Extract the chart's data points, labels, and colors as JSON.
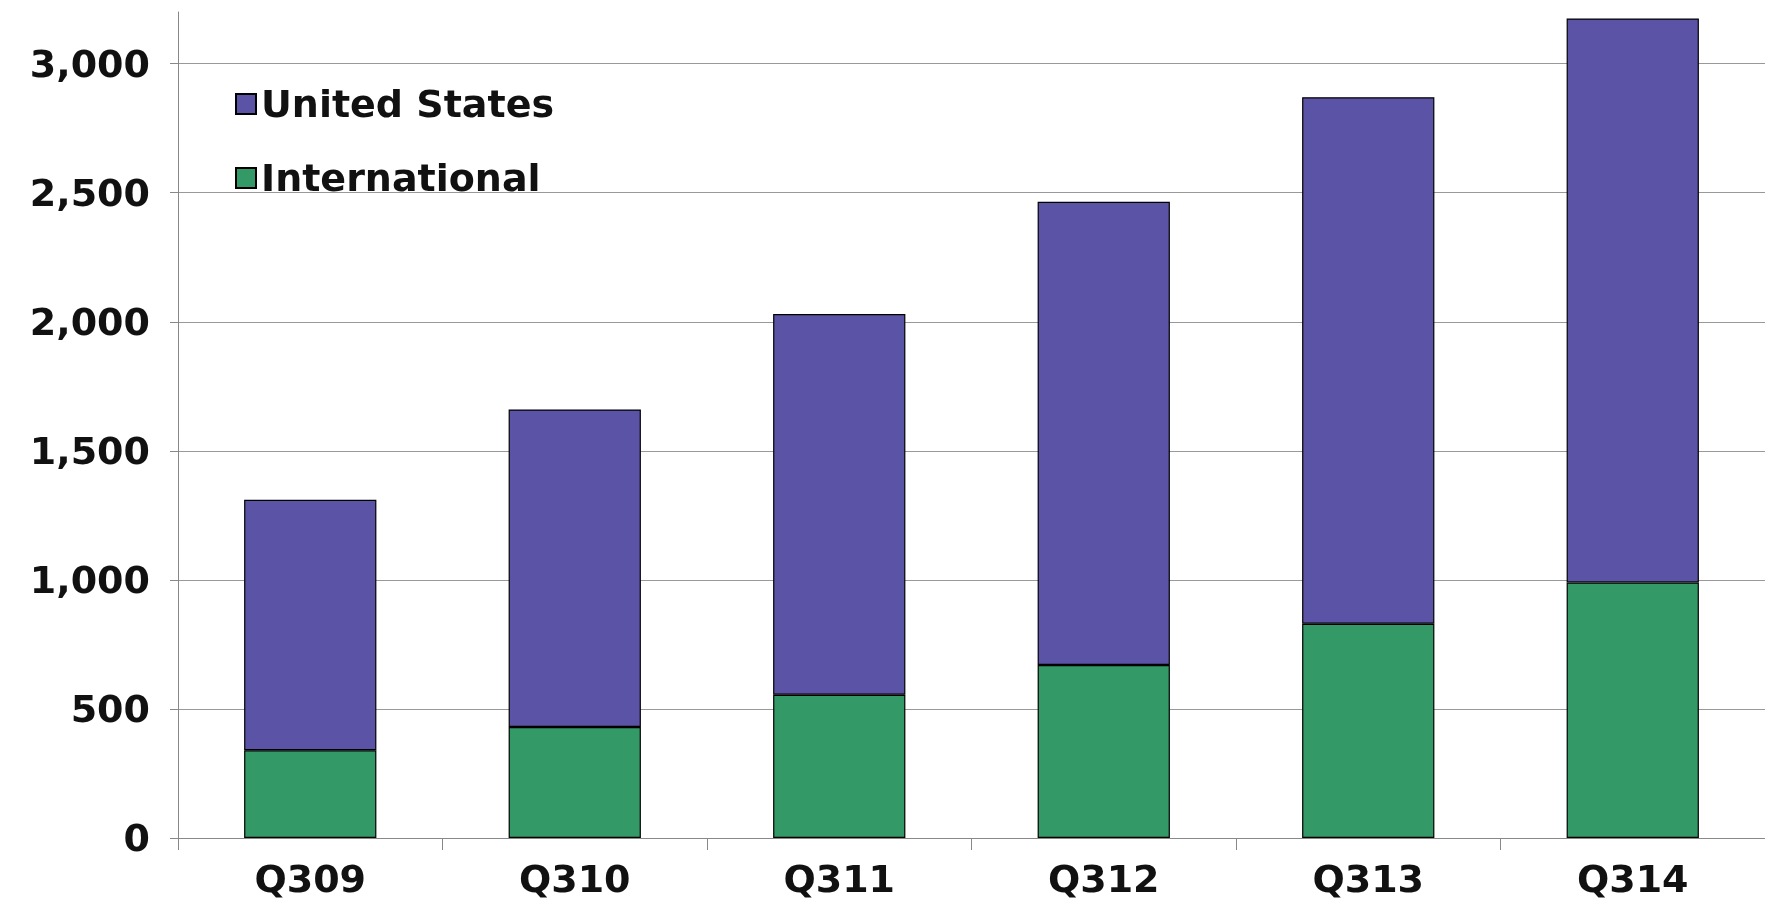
{
  "chart_data": {
    "type": "bar",
    "stacked": true,
    "categories": [
      "Q309",
      "Q310",
      "Q311",
      "Q312",
      "Q313",
      "Q314"
    ],
    "series": [
      {
        "name": "International",
        "color": "#339966",
        "values": [
          340,
          430,
          555,
          670,
          830,
          990
        ]
      },
      {
        "name": "United States",
        "color": "#5a53a6",
        "values": [
          970,
          1230,
          1475,
          1795,
          2040,
          2185
        ]
      }
    ],
    "ylim": [
      0,
      3200
    ],
    "yticks": [
      0,
      500,
      {
        "value": 1000,
        "label": "1,000"
      },
      {
        "value": 1500,
        "label": "1,500"
      },
      {
        "value": 2000,
        "label": "2,000"
      },
      {
        "value": 2500,
        "label": "2,500"
      },
      {
        "value": 3000,
        "label": "3,000"
      }
    ],
    "grid": "y",
    "legend": "top left"
  }
}
